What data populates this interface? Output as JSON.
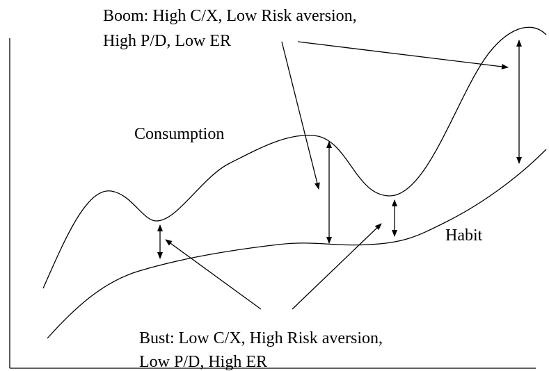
{
  "boom_label": {
    "lines": [
      "Boom: High C/X, Low Risk aversion,",
      "High P/D, Low ER"
    ]
  },
  "curves": [
    {
      "label": "Consumption"
    },
    {
      "label": "Habit"
    }
  ],
  "bust_label": {
    "lines": [
      "Bust: Low C/X, High Risk aversion,",
      "Low P/D, High ER"
    ]
  }
}
